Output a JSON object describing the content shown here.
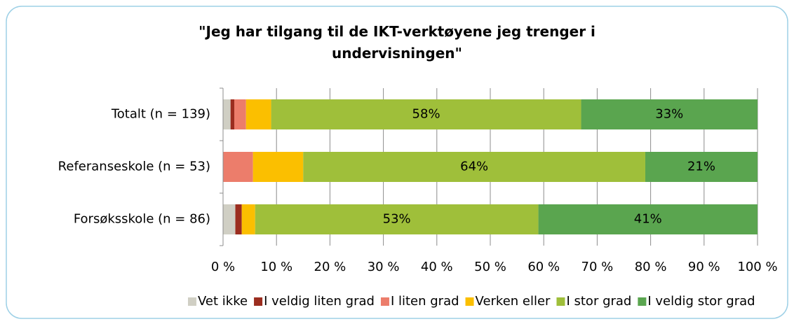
{
  "chart_data": {
    "type": "stacked_barh",
    "title": "\"Jeg har tilgang til de IKT-verktøyene jeg trenger i undervisningen\"",
    "categories": [
      "Totalt (n = 139)",
      "Referanseskole (n = 53)",
      "Forsøksskole (n = 86)"
    ],
    "series": [
      {
        "name": "Vet ikke",
        "color": "#d0cfc4",
        "values": [
          1.4,
          0,
          2.3
        ]
      },
      {
        "name": "I veldig liten grad",
        "color": "#9b2d1f",
        "values": [
          0.7,
          0,
          1.2
        ]
      },
      {
        "name": "I liten grad",
        "color": "#ec7d6b",
        "values": [
          2.2,
          5.6,
          0
        ]
      },
      {
        "name": "Verken eller",
        "color": "#fbbf00",
        "values": [
          4.7,
          9.4,
          2.5
        ]
      },
      {
        "name": "I stor grad",
        "color": "#9fbf3a",
        "values": [
          58,
          64,
          53
        ],
        "value_labels": [
          "58%",
          "64%",
          "53%"
        ]
      },
      {
        "name": "I veldig stor grad",
        "color": "#5aa54f",
        "values": [
          33,
          21,
          41
        ],
        "value_labels": [
          "33%",
          "21%",
          "41%"
        ]
      }
    ],
    "xlim": [
      0,
      100
    ],
    "xticks": [
      {
        "value": 0,
        "label": "0 %"
      },
      {
        "value": 10,
        "label": "10 %"
      },
      {
        "value": 20,
        "label": "20 %"
      },
      {
        "value": 30,
        "label": "30 %"
      },
      {
        "value": 40,
        "label": "40 %"
      },
      {
        "value": 50,
        "label": "50 %"
      },
      {
        "value": 60,
        "label": "60 %"
      },
      {
        "value": 70,
        "label": "70 %"
      },
      {
        "value": 80,
        "label": "80 %"
      },
      {
        "value": 90,
        "label": "90 %"
      },
      {
        "value": 100,
        "label": "100 %"
      }
    ],
    "grid": true,
    "legend": "bottom"
  }
}
